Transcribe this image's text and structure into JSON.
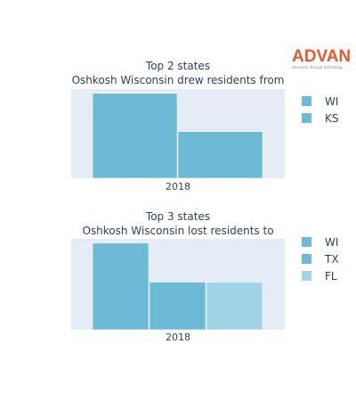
{
  "logo": {
    "name": "ADVAN",
    "tagline": "Research through Technology",
    "color": "#e35a32"
  },
  "chart_data": [
    {
      "type": "bar",
      "title": "Top 2 states",
      "subtitle": "Oshkosh Wisconsin drew residents from",
      "categories": [
        "2018"
      ],
      "series": [
        {
          "name": "WI",
          "values": [
            1.0
          ],
          "color": "#6dbad6"
        },
        {
          "name": "KS",
          "values": [
            0.55
          ],
          "color": "#6dbad6"
        }
      ],
      "ylim": [
        0,
        1.05
      ],
      "grid": false,
      "legend": "right",
      "plot_background": "#e5ecf6"
    },
    {
      "type": "bar",
      "title": "Top 3 states",
      "subtitle": "Oshkosh Wisconsin lost residents to",
      "categories": [
        "2018"
      ],
      "series": [
        {
          "name": "WI",
          "values": [
            1.0
          ],
          "color": "#6dbad6"
        },
        {
          "name": "TX",
          "values": [
            0.55
          ],
          "color": "#6dbad6"
        },
        {
          "name": "FL",
          "values": [
            0.55
          ],
          "color": "#a0d4e6"
        }
      ],
      "ylim": [
        0,
        1.05
      ],
      "grid": false,
      "legend": "right",
      "plot_background": "#e5ecf6"
    }
  ]
}
